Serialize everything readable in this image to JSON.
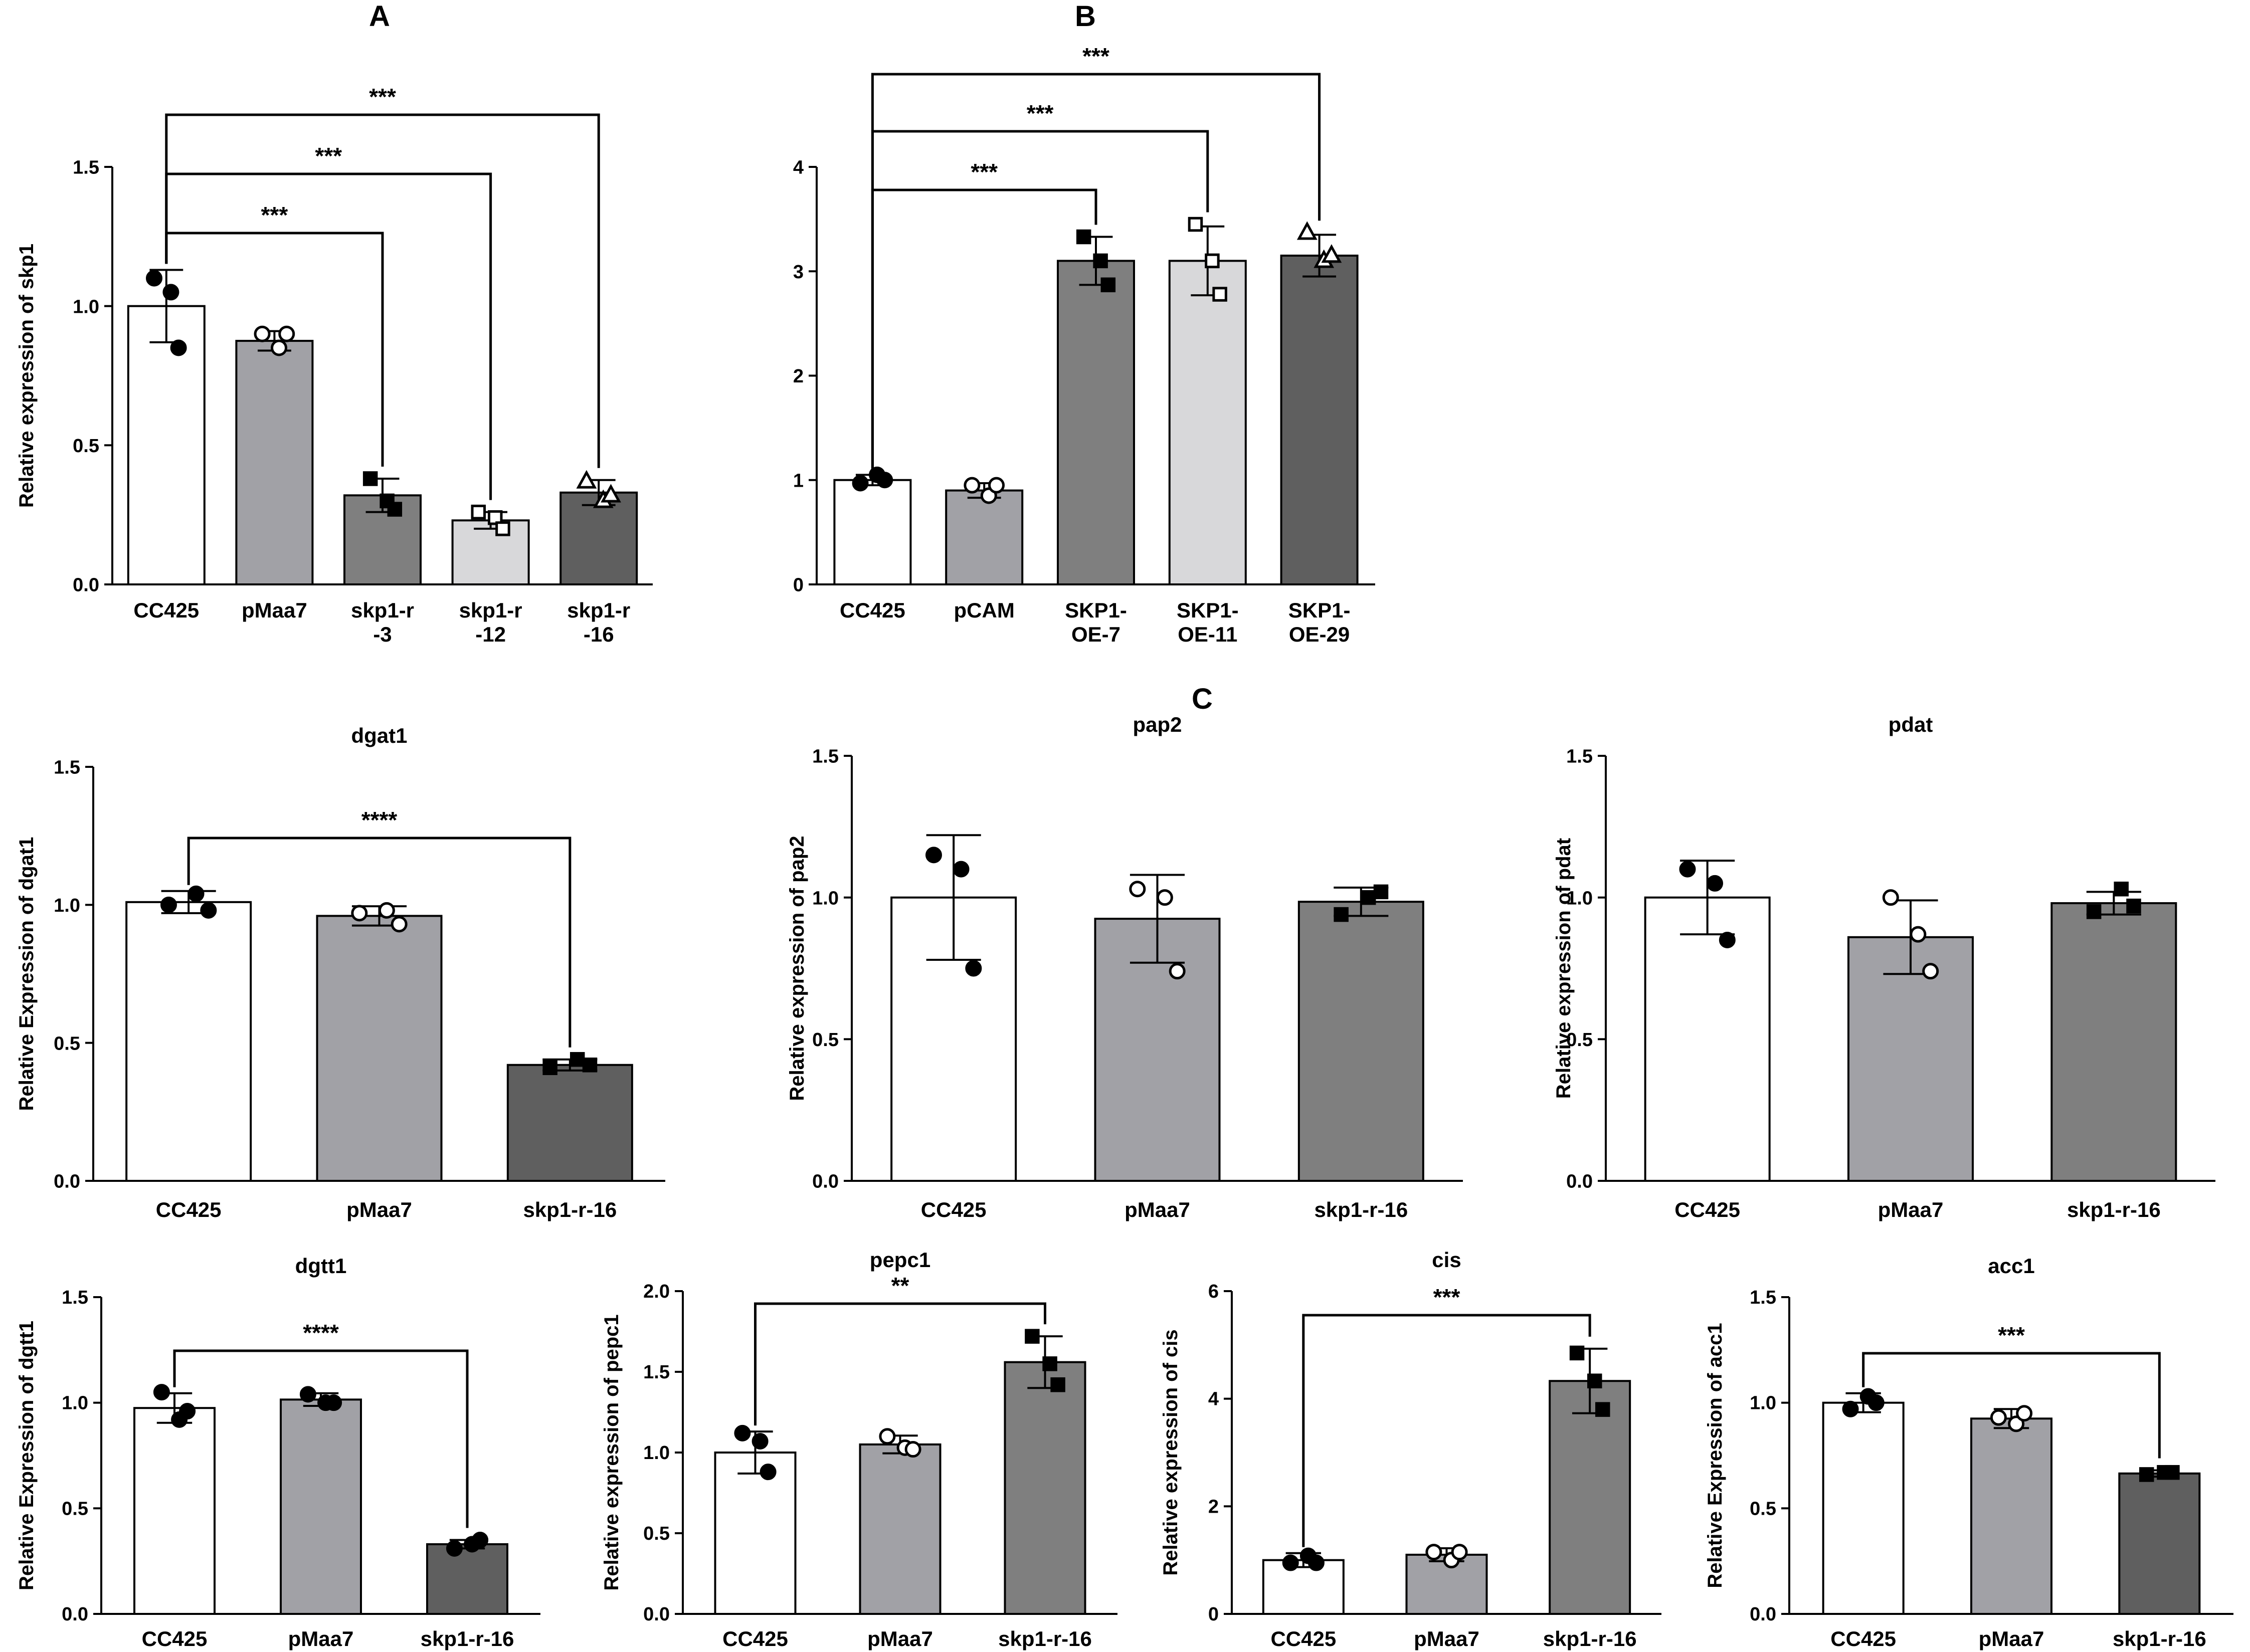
{
  "figure": {
    "panel_labels": [
      "A",
      "B",
      "C"
    ]
  },
  "colors": {
    "white": "#ffffff",
    "light_gray": "#d8d8da",
    "mid_gray": "#a1a1a6",
    "gray": "#7f7f7f",
    "dark_gray": "#5f5f5f",
    "black": "#000000"
  },
  "chart_data": [
    {
      "type": "bar",
      "panel": "A",
      "title": "",
      "ylabel": "Relative expression of skp1",
      "ylim": [
        0,
        1.5
      ],
      "yticks": [
        0.0,
        0.5,
        1.0,
        1.5
      ],
      "ytick_labels": [
        "0.0",
        "0.5",
        "1.0",
        "1.5"
      ],
      "categories": [
        "CC425",
        "pMaa7",
        "skp1-r -3",
        "skp1-r -12",
        "skp1-r -16"
      ],
      "category_lines": [
        [
          "CC425"
        ],
        [
          "pMaa7"
        ],
        [
          "skp1-r",
          "-3"
        ],
        [
          "skp1-r",
          "-12"
        ],
        [
          "skp1-r",
          "-16"
        ]
      ],
      "values": [
        1.0,
        0.875,
        0.32,
        0.23,
        0.33
      ],
      "errors": [
        0.13,
        0.035,
        0.06,
        0.03,
        0.045
      ],
      "bar_colors": [
        "#ffffff",
        "#a1a1a6",
        "#7f7f7f",
        "#d8d8da",
        "#5f5f5f"
      ],
      "markers": [
        "filled-circle",
        "open-circle",
        "filled-square",
        "open-square",
        "open-triangle"
      ],
      "points": [
        [
          1.1,
          1.05,
          0.85
        ],
        [
          0.9,
          0.85,
          0.9
        ],
        [
          0.38,
          0.3,
          0.27
        ],
        [
          0.26,
          0.24,
          0.2
        ],
        [
          0.37,
          0.3,
          0.32
        ]
      ],
      "significance": [
        {
          "from": 0,
          "to": 2,
          "label": "***"
        },
        {
          "from": 0,
          "to": 3,
          "label": "***"
        },
        {
          "from": 0,
          "to": 4,
          "label": "***"
        }
      ]
    },
    {
      "type": "bar",
      "panel": "B",
      "title": "",
      "ylabel": "",
      "ylim": [
        0,
        4
      ],
      "yticks": [
        0,
        1,
        2,
        3,
        4
      ],
      "ytick_labels": [
        "0",
        "1",
        "2",
        "3",
        "4"
      ],
      "categories": [
        "CC425",
        "pCAM",
        "SKP1- OE-7",
        "SKP1- OE-11",
        "SKP1- OE-29"
      ],
      "category_lines": [
        [
          "CC425"
        ],
        [
          "pCAM"
        ],
        [
          "SKP1-",
          "OE-7"
        ],
        [
          "SKP1-",
          "OE-11"
        ],
        [
          "SKP1-",
          "OE-29"
        ]
      ],
      "values": [
        1.0,
        0.9,
        3.1,
        3.1,
        3.15
      ],
      "errors": [
        0.05,
        0.07,
        0.23,
        0.33,
        0.2
      ],
      "bar_colors": [
        "#ffffff",
        "#a1a1a6",
        "#7f7f7f",
        "#d8d8da",
        "#5f5f5f"
      ],
      "markers": [
        "filled-circle",
        "open-circle",
        "filled-square",
        "open-square",
        "open-triangle"
      ],
      "points": [
        [
          0.97,
          1.05,
          1.0
        ],
        [
          0.95,
          0.85,
          0.95
        ],
        [
          3.33,
          3.1,
          2.87
        ],
        [
          3.45,
          3.1,
          2.78
        ],
        [
          3.37,
          3.1,
          3.15
        ]
      ],
      "significance": [
        {
          "from": 0,
          "to": 2,
          "label": "***"
        },
        {
          "from": 0,
          "to": 3,
          "label": "***"
        },
        {
          "from": 0,
          "to": 4,
          "label": "***"
        }
      ]
    },
    {
      "type": "bar",
      "panel": "C",
      "title": "dgat1",
      "ylabel": "Relative Expression of dgat1",
      "ylim": [
        0,
        1.5
      ],
      "yticks": [
        0.0,
        0.5,
        1.0,
        1.5
      ],
      "ytick_labels": [
        "0.0",
        "0.5",
        "1.0",
        "1.5"
      ],
      "categories": [
        "CC425",
        "pMaa7",
        "skp1-r-16"
      ],
      "category_lines": [
        [
          "CC425"
        ],
        [
          "pMaa7"
        ],
        [
          "skp1-r-16"
        ]
      ],
      "values": [
        1.01,
        0.96,
        0.42
      ],
      "errors": [
        0.04,
        0.035,
        0.02
      ],
      "bar_colors": [
        "#ffffff",
        "#a1a1a6",
        "#5f5f5f"
      ],
      "markers": [
        "filled-circle",
        "open-circle",
        "filled-square"
      ],
      "points": [
        [
          1.0,
          1.04,
          0.98
        ],
        [
          0.97,
          0.98,
          0.93
        ],
        [
          0.41,
          0.44,
          0.42
        ]
      ],
      "significance": [
        {
          "from": 0,
          "to": 2,
          "label": "****"
        }
      ]
    },
    {
      "type": "bar",
      "panel": "C",
      "title": "pap2",
      "ylabel": "Relative expression of pap2",
      "ylim": [
        0,
        1.5
      ],
      "yticks": [
        0.0,
        0.5,
        1.0,
        1.5
      ],
      "ytick_labels": [
        "0.0",
        "0.5",
        "1.0",
        "1.5"
      ],
      "categories": [
        "CC425",
        "pMaa7",
        "skp1-r-16"
      ],
      "category_lines": [
        [
          "CC425"
        ],
        [
          "pMaa7"
        ],
        [
          "skp1-r-16"
        ]
      ],
      "values": [
        1.0,
        0.925,
        0.985
      ],
      "errors": [
        0.22,
        0.155,
        0.05
      ],
      "bar_colors": [
        "#ffffff",
        "#a1a1a6",
        "#7f7f7f"
      ],
      "markers": [
        "filled-circle",
        "open-circle",
        "filled-square"
      ],
      "points": [
        [
          1.15,
          1.1,
          0.75
        ],
        [
          1.03,
          1.0,
          0.74
        ],
        [
          0.94,
          1.0,
          1.02
        ]
      ],
      "significance": []
    },
    {
      "type": "bar",
      "panel": "C",
      "title": "pdat",
      "ylabel": "Relative expression of pdat",
      "ylim": [
        0,
        1.5
      ],
      "yticks": [
        0.0,
        0.5,
        1.0,
        1.5
      ],
      "ytick_labels": [
        "0.0",
        "0.5",
        "1.0",
        "1.5"
      ],
      "categories": [
        "CC425",
        "pMaa7",
        "skp1-r-16"
      ],
      "category_lines": [
        [
          "CC425"
        ],
        [
          "pMaa7"
        ],
        [
          "skp1-r-16"
        ]
      ],
      "values": [
        1.0,
        0.86,
        0.98
      ],
      "errors": [
        0.13,
        0.13,
        0.04
      ],
      "bar_colors": [
        "#ffffff",
        "#a1a1a6",
        "#7f7f7f"
      ],
      "markers": [
        "filled-circle",
        "open-circle",
        "filled-square"
      ],
      "points": [
        [
          1.1,
          1.05,
          0.85
        ],
        [
          1.0,
          0.87,
          0.74
        ],
        [
          0.95,
          1.03,
          0.97
        ]
      ],
      "significance": []
    },
    {
      "type": "bar",
      "panel": "C",
      "title": "dgtt1",
      "ylabel": "Relative Expression of dgtt1",
      "ylim": [
        0,
        1.5
      ],
      "yticks": [
        0.0,
        0.5,
        1.0,
        1.5
      ],
      "ytick_labels": [
        "0.0",
        "0.5",
        "1.0",
        "1.5"
      ],
      "categories": [
        "CC425",
        "pMaa7",
        "skp1-r-16"
      ],
      "category_lines": [
        [
          "CC425"
        ],
        [
          "pMaa7"
        ],
        [
          "skp1-r-16"
        ]
      ],
      "values": [
        0.975,
        1.015,
        0.33
      ],
      "errors": [
        0.07,
        0.03,
        0.02
      ],
      "bar_colors": [
        "#ffffff",
        "#a1a1a6",
        "#5f5f5f"
      ],
      "markers": [
        "filled-circle",
        "filled-circle",
        "filled-circle"
      ],
      "points": [
        [
          1.05,
          0.92,
          0.96
        ],
        [
          1.04,
          1.0,
          1.0
        ],
        [
          0.31,
          0.33,
          0.35
        ]
      ],
      "significance": [
        {
          "from": 0,
          "to": 2,
          "label": "****"
        }
      ]
    },
    {
      "type": "bar",
      "panel": "C",
      "title": "pepc1",
      "ylabel": "Relative expression of pepc1",
      "ylim": [
        0,
        2.0
      ],
      "yticks": [
        0.0,
        0.5,
        1.0,
        1.5,
        2.0
      ],
      "ytick_labels": [
        "0.0",
        "0.5",
        "1.0",
        "1.5",
        "2.0"
      ],
      "categories": [
        "CC425",
        "pMaa7",
        "skp1-r-16"
      ],
      "category_lines": [
        [
          "CC425"
        ],
        [
          "pMaa7"
        ],
        [
          "skp1-r-16"
        ]
      ],
      "values": [
        1.0,
        1.05,
        1.56
      ],
      "errors": [
        0.13,
        0.055,
        0.16
      ],
      "bar_colors": [
        "#ffffff",
        "#a1a1a6",
        "#7f7f7f"
      ],
      "markers": [
        "filled-circle",
        "open-circle",
        "filled-square"
      ],
      "points": [
        [
          1.12,
          1.07,
          0.88
        ],
        [
          1.1,
          1.03,
          1.02
        ],
        [
          1.72,
          1.55,
          1.42
        ]
      ],
      "significance": [
        {
          "from": 0,
          "to": 2,
          "label": "**"
        }
      ]
    },
    {
      "type": "bar",
      "panel": "C",
      "title": "cis",
      "ylabel": "Relative expression of cis",
      "ylim": [
        0,
        6
      ],
      "yticks": [
        0,
        2,
        4,
        6
      ],
      "ytick_labels": [
        "0",
        "2",
        "4",
        "6"
      ],
      "categories": [
        "CC425",
        "pMaa7",
        "skp1-r-16"
      ],
      "category_lines": [
        [
          "CC425"
        ],
        [
          "pMaa7"
        ],
        [
          "skp1-r-16"
        ]
      ],
      "values": [
        1.0,
        1.1,
        4.33
      ],
      "errors": [
        0.13,
        0.12,
        0.6
      ],
      "bar_colors": [
        "#ffffff",
        "#a1a1a6",
        "#7f7f7f"
      ],
      "markers": [
        "filled-circle",
        "open-circle",
        "filled-square"
      ],
      "points": [
        [
          0.95,
          1.08,
          0.95
        ],
        [
          1.15,
          1.0,
          1.15
        ],
        [
          4.85,
          4.33,
          3.8
        ]
      ],
      "significance": [
        {
          "from": 0,
          "to": 2,
          "label": "***"
        }
      ]
    },
    {
      "type": "bar",
      "panel": "C",
      "title": "acc1",
      "ylabel": "Relative Expression of acc1",
      "ylim": [
        0,
        1.5
      ],
      "yticks": [
        0.0,
        0.5,
        1.0,
        1.5
      ],
      "ytick_labels": [
        "0.0",
        "0.5",
        "1.0",
        "1.5"
      ],
      "categories": [
        "CC425",
        "pMaa7",
        "skp1-r-16"
      ],
      "category_lines": [
        [
          "CC425"
        ],
        [
          "pMaa7"
        ],
        [
          "skp1-r-16"
        ]
      ],
      "values": [
        1.0,
        0.925,
        0.665
      ],
      "errors": [
        0.045,
        0.045,
        0.015
      ],
      "bar_colors": [
        "#ffffff",
        "#a1a1a6",
        "#5f5f5f"
      ],
      "markers": [
        "filled-circle",
        "open-circle",
        "filled-square"
      ],
      "points": [
        [
          0.97,
          1.03,
          1.0
        ],
        [
          0.93,
          0.9,
          0.95
        ],
        [
          0.66,
          0.67,
          0.67
        ]
      ],
      "significance": [
        {
          "from": 0,
          "to": 2,
          "label": "***"
        }
      ]
    }
  ]
}
